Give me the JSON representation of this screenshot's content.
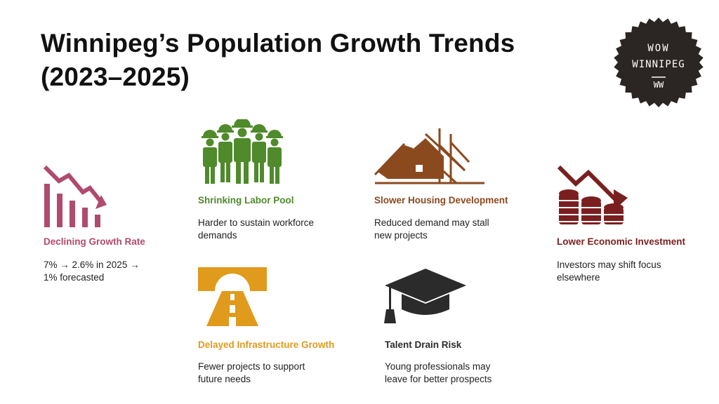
{
  "title": {
    "line1": "Winnipeg’s Population Growth Trends",
    "line2": "(2023–2025)"
  },
  "badge": {
    "line1": "WOW",
    "line2": "WINNIPEG",
    "monogram": "WW",
    "color": "#2b2523"
  },
  "items": [
    {
      "id": "declining-growth-rate",
      "icon": "declining-bar-chart-icon",
      "color": "#b04a6e",
      "label": "Declining Growth Rate",
      "desc_line1": "7% → 2.6% in 2025 →",
      "desc_line2": "1% forecasted"
    },
    {
      "id": "shrinking-labor-pool",
      "icon": "workers-group-icon",
      "color": "#4f8a2b",
      "label": "Shrinking Labor Pool",
      "desc_line1": "Harder to sustain workforce",
      "desc_line2": "demands"
    },
    {
      "id": "slower-housing-development",
      "icon": "house-construction-icon",
      "color": "#8b4a1e",
      "label": "Slower Housing Development",
      "desc_line1": "Reduced demand may stall",
      "desc_line2": "new projects"
    },
    {
      "id": "lower-economic-investment",
      "icon": "coins-declining-icon",
      "color": "#7a1f1f",
      "label": "Lower Economic Investment",
      "desc_line1": "Investors may shift focus",
      "desc_line2": "elsewhere"
    },
    {
      "id": "delayed-infrastructure-growth",
      "icon": "road-icon",
      "color": "#e09a1c",
      "label": "Delayed Infrastructure Growth",
      "desc_line1": "Fewer projects to support",
      "desc_line2": "future needs"
    },
    {
      "id": "talent-drain-risk",
      "icon": "graduation-cap-icon",
      "color": "#2b2b2b",
      "label": "Talent Drain Risk",
      "desc_line1": "Young professionals may",
      "desc_line2": "leave for better prospects"
    }
  ]
}
